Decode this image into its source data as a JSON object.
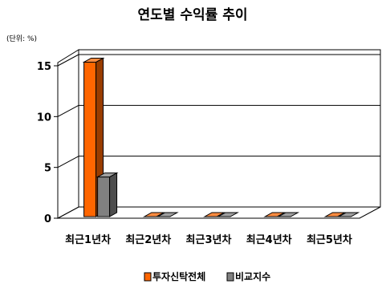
{
  "chart_data": {
    "type": "bar",
    "title": "연도별 수익률 추이",
    "unit_label": "(단위: %)",
    "categories": [
      "최근1년차",
      "최근2년차",
      "최근3년차",
      "최근4년차",
      "최근5년차"
    ],
    "series": [
      {
        "name": "투자신탁전체",
        "values": [
          15.2,
          0,
          0,
          0,
          0
        ],
        "color": "#ff6600"
      },
      {
        "name": "비교지수",
        "values": [
          3.9,
          0,
          0,
          0,
          0
        ],
        "color": "#808080"
      }
    ],
    "ylim": [
      0,
      15
    ],
    "yticks": [
      0,
      5,
      10,
      15
    ],
    "grid": true,
    "legend_position": "bottom"
  }
}
